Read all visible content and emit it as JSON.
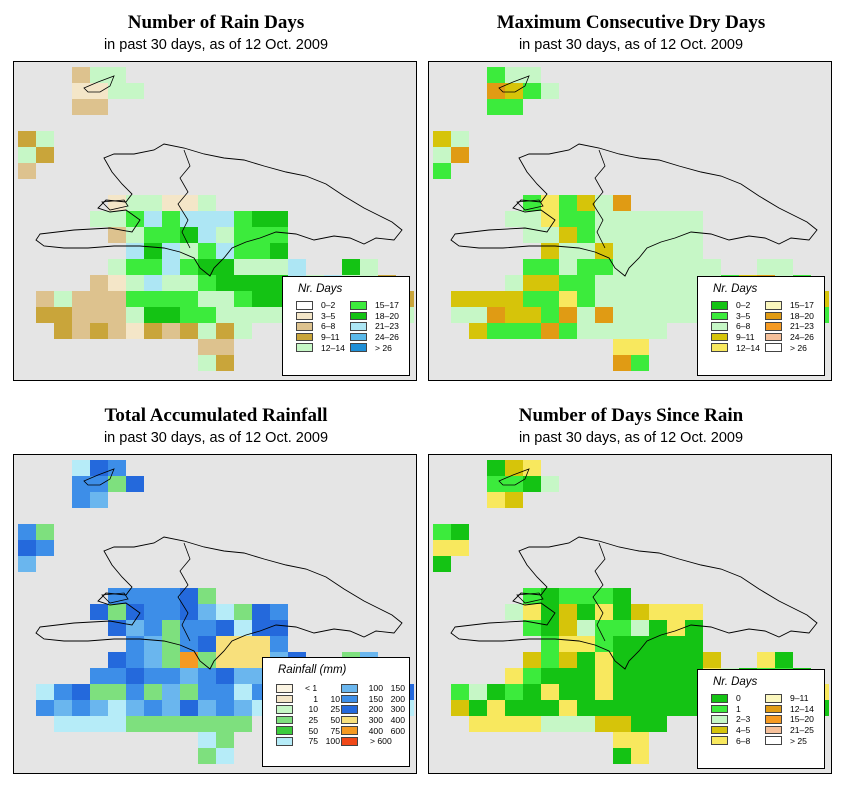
{
  "panels": [
    {
      "title": "Number of Rain Days",
      "subtitle": "in past 30 days, as of  12 Oct. 2009",
      "legend_title": "Nr. Days",
      "legend": [
        {
          "label": "0–2",
          "color": "#ffffff"
        },
        {
          "label": "3–5",
          "color": "#f4e6c8"
        },
        {
          "label": "6–8",
          "color": "#ddc28e"
        },
        {
          "label": "9–11",
          "color": "#c9a53a"
        },
        {
          "label": "12–14",
          "color": "#c6f7c6"
        },
        {
          "label": "15–17",
          "color": "#3ceb3c"
        },
        {
          "label": "18–20",
          "color": "#14c314"
        },
        {
          "label": "21–23",
          "color": "#ade6f4"
        },
        {
          "label": "24–26",
          "color": "#5ab9ea"
        },
        {
          "label": "> 26",
          "color": "#1f8fd6"
        }
      ]
    },
    {
      "title": "Maximum Consecutive Dry Days",
      "subtitle": "in past 30 days, as of  12 Oct. 2009",
      "legend_title": "Nr. Days",
      "legend": [
        {
          "label": "0–2",
          "color": "#14c314"
        },
        {
          "label": "3–5",
          "color": "#3ceb3c"
        },
        {
          "label": "6–8",
          "color": "#c6f7c6"
        },
        {
          "label": "9–11",
          "color": "#d6c40a"
        },
        {
          "label": "12–14",
          "color": "#f8e85e"
        },
        {
          "label": "15–17",
          "color": "#fbf7be"
        },
        {
          "label": "18–20",
          "color": "#e09b14"
        },
        {
          "label": "21–23",
          "color": "#f59a22"
        },
        {
          "label": "24–26",
          "color": "#f6c09a"
        },
        {
          "label": "> 26",
          "color": "#ffffff"
        }
      ]
    },
    {
      "title": "Total Accumulated Rainfall",
      "subtitle": "in past 30 days, as of  12 Oct. 2009",
      "legend_title": "Rainfall (mm)",
      "legend": [
        {
          "lo": "< 1",
          "hi": "",
          "color": "#fbf4e2"
        },
        {
          "lo": "1",
          "hi": "10",
          "color": "#f4e6c8"
        },
        {
          "lo": "10",
          "hi": "25",
          "color": "#c6f7c6"
        },
        {
          "lo": "25",
          "hi": "50",
          "color": "#7ee07e"
        },
        {
          "lo": "50",
          "hi": "75",
          "color": "#3ccc3c"
        },
        {
          "lo": "75",
          "hi": "100",
          "color": "#b6ecf8"
        },
        {
          "lo": "100",
          "hi": "150",
          "color": "#6ab6ee"
        },
        {
          "lo": "150",
          "hi": "200",
          "color": "#3d8ee8"
        },
        {
          "lo": "200",
          "hi": "300",
          "color": "#2469dc"
        },
        {
          "lo": "300",
          "hi": "400",
          "color": "#f8e07c"
        },
        {
          "lo": "400",
          "hi": "600",
          "color": "#f59a22"
        },
        {
          "lo": "> 600",
          "hi": "",
          "color": "#f04818"
        }
      ]
    },
    {
      "title": "Number of Days Since Rain",
      "subtitle": "in past 30 days, as of  12 Oct. 2009",
      "legend_title": "Nr. Days",
      "legend": [
        {
          "label": "0",
          "color": "#14c314"
        },
        {
          "label": "1",
          "color": "#3ceb3c"
        },
        {
          "label": "2–3",
          "color": "#c6f7c6"
        },
        {
          "label": "4–5",
          "color": "#d6c40a"
        },
        {
          "label": "6–8",
          "color": "#f8e85e"
        },
        {
          "label": "9–11",
          "color": "#fbf7be"
        },
        {
          "label": "12–14",
          "color": "#e09b14"
        },
        {
          "label": "15–20",
          "color": "#f59a22"
        },
        {
          "label": "21–25",
          "color": "#f6c09a"
        },
        {
          "label": "> 25",
          "color": "#ffffff"
        }
      ]
    }
  ]
}
